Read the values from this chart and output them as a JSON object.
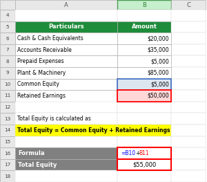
{
  "fig_width": 3.0,
  "fig_height": 2.63,
  "dpi": 100,
  "bg_color": "#ffffff",
  "header_row": [
    "Particulars",
    "Amount"
  ],
  "header_bg": "#1e8c3a",
  "header_fg": "#ffffff",
  "data_rows": [
    [
      "Cash & Cash Equivalents",
      "$20,000"
    ],
    [
      "Accounts Receivable",
      "$35,000"
    ],
    [
      "Prepaid Expenses",
      "$5,000"
    ],
    [
      "Plant & Machinery",
      "$85,000"
    ],
    [
      "Common Equity",
      "$5,000"
    ],
    [
      "Retained Earnings",
      "$50,000"
    ]
  ],
  "text_13": "Total Equity is calculated as",
  "text_14": "Total Equity = Common Equity + Retained Earnings",
  "text_14_bg": "#ffff00",
  "formula_label": "Formula",
  "formula_b10_color": "#0000ff",
  "formula_b11_color": "#ff0000",
  "total_label": "Total Equity",
  "total_value": "$55,000",
  "footer_bg": "#808080",
  "footer_fg": "#ffffff",
  "b10_highlight_bg": "#dce6f1",
  "b11_highlight_bg": "#ffd7d7",
  "b10_border_color": "#4472c4",
  "b11_border_color": "#ff0000",
  "formula_box_border": "#ff0000",
  "total_box_border": "#ff0000",
  "col_header_bg": "#e8e8e8",
  "row_num_bg": "#e8e8e8",
  "grid_color": "#b0b0b0",
  "grid_color_light": "#d8d8d8"
}
